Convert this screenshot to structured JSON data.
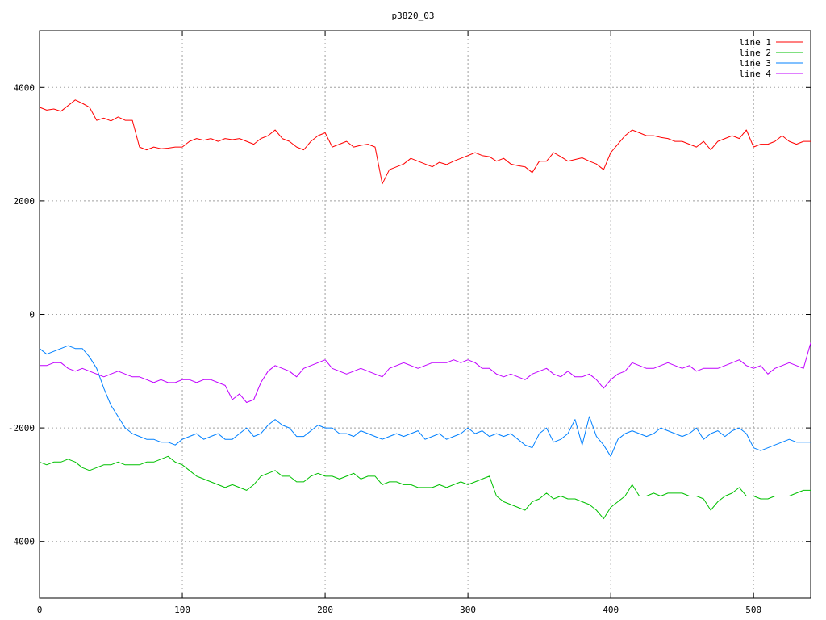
{
  "chart_data": {
    "type": "line",
    "title": "p3820_03",
    "xlabel": "",
    "ylabel": "",
    "xlim": [
      0,
      540
    ],
    "ylim": [
      -5000,
      5000
    ],
    "xticks": [
      0,
      100,
      200,
      300,
      400,
      500
    ],
    "yticks": [
      -4000,
      -2000,
      0,
      2000,
      4000
    ],
    "xtick_labels": [
      "0",
      "100",
      "200",
      "300",
      "400",
      "500"
    ],
    "ytick_labels": [
      "-4000",
      "-2000",
      "0",
      "2000",
      "4000"
    ],
    "grid": true,
    "legend_position": "top-right",
    "x": [
      0,
      5,
      10,
      15,
      20,
      25,
      30,
      35,
      40,
      45,
      50,
      55,
      60,
      65,
      70,
      75,
      80,
      85,
      90,
      95,
      100,
      105,
      110,
      115,
      120,
      125,
      130,
      135,
      140,
      145,
      150,
      155,
      160,
      165,
      170,
      175,
      180,
      185,
      190,
      195,
      200,
      205,
      210,
      215,
      220,
      225,
      230,
      235,
      240,
      245,
      250,
      255,
      260,
      265,
      270,
      275,
      280,
      285,
      290,
      295,
      300,
      305,
      310,
      315,
      320,
      325,
      330,
      335,
      340,
      345,
      350,
      355,
      360,
      365,
      370,
      375,
      380,
      385,
      390,
      395,
      400,
      405,
      410,
      415,
      420,
      425,
      430,
      435,
      440,
      445,
      450,
      455,
      460,
      465,
      470,
      475,
      480,
      485,
      490,
      495,
      500,
      505,
      510,
      515,
      520,
      525,
      530,
      535,
      540
    ],
    "series": [
      {
        "name": "line 1",
        "color": "#ff0000",
        "values": [
          3650,
          3600,
          3620,
          3580,
          3680,
          3780,
          3720,
          3650,
          3420,
          3460,
          3410,
          3480,
          3420,
          3420,
          2950,
          2900,
          2950,
          2920,
          2930,
          2950,
          2950,
          3050,
          3100,
          3070,
          3100,
          3050,
          3100,
          3080,
          3100,
          3050,
          3000,
          3100,
          3150,
          3250,
          3100,
          3050,
          2950,
          2900,
          3050,
          3150,
          3200,
          2950,
          3000,
          3050,
          2950,
          2980,
          3000,
          2950,
          2300,
          2550,
          2600,
          2650,
          2750,
          2700,
          2650,
          2600,
          2680,
          2640,
          2700,
          2750,
          2800,
          2850,
          2800,
          2780,
          2700,
          2750,
          2650,
          2620,
          2600,
          2500,
          2700,
          2700,
          2850,
          2780,
          2700,
          2730,
          2760,
          2700,
          2650,
          2550,
          2850,
          3000,
          3150,
          3250,
          3200,
          3150,
          3150,
          3120,
          3100,
          3050,
          3050,
          3000,
          2950,
          3050,
          2900,
          3050,
          3100,
          3150,
          3100,
          3250,
          2950,
          3000,
          3000,
          3050,
          3150,
          3050,
          3000,
          3050,
          3050
        ]
      },
      {
        "name": "line 2",
        "color": "#00c000",
        "values": [
          -2600,
          -2650,
          -2600,
          -2600,
          -2550,
          -2600,
          -2700,
          -2750,
          -2700,
          -2650,
          -2650,
          -2600,
          -2650,
          -2650,
          -2650,
          -2600,
          -2600,
          -2550,
          -2500,
          -2600,
          -2650,
          -2750,
          -2850,
          -2900,
          -2950,
          -3000,
          -3050,
          -3000,
          -3050,
          -3100,
          -3000,
          -2850,
          -2800,
          -2750,
          -2850,
          -2850,
          -2950,
          -2950,
          -2850,
          -2800,
          -2850,
          -2850,
          -2900,
          -2850,
          -2800,
          -2900,
          -2850,
          -2850,
          -3000,
          -2950,
          -2950,
          -3000,
          -3000,
          -3050,
          -3050,
          -3050,
          -3000,
          -3050,
          -3000,
          -2950,
          -3000,
          -2950,
          -2900,
          -2850,
          -3200,
          -3300,
          -3350,
          -3400,
          -3450,
          -3300,
          -3250,
          -3150,
          -3250,
          -3200,
          -3250,
          -3250,
          -3300,
          -3350,
          -3450,
          -3600,
          -3400,
          -3300,
          -3200,
          -3000,
          -3200,
          -3200,
          -3150,
          -3200,
          -3150,
          -3150,
          -3150,
          -3200,
          -3200,
          -3250,
          -3450,
          -3300,
          -3200,
          -3150,
          -3050,
          -3200,
          -3200,
          -3250,
          -3250,
          -3200,
          -3200,
          -3200,
          -3150,
          -3100,
          -3100
        ]
      },
      {
        "name": "line 3",
        "color": "#0080ff",
        "values": [
          -600,
          -700,
          -650,
          -600,
          -550,
          -600,
          -600,
          -750,
          -950,
          -1300,
          -1600,
          -1800,
          -2000,
          -2100,
          -2150,
          -2200,
          -2200,
          -2250,
          -2250,
          -2300,
          -2200,
          -2150,
          -2100,
          -2200,
          -2150,
          -2100,
          -2200,
          -2200,
          -2100,
          -2000,
          -2150,
          -2100,
          -1950,
          -1850,
          -1950,
          -2000,
          -2150,
          -2150,
          -2050,
          -1950,
          -2000,
          -2000,
          -2100,
          -2100,
          -2150,
          -2050,
          -2100,
          -2150,
          -2200,
          -2150,
          -2100,
          -2150,
          -2100,
          -2050,
          -2200,
          -2150,
          -2100,
          -2200,
          -2150,
          -2100,
          -2000,
          -2100,
          -2050,
          -2150,
          -2100,
          -2150,
          -2100,
          -2200,
          -2300,
          -2350,
          -2100,
          -2000,
          -2250,
          -2200,
          -2100,
          -1850,
          -2300,
          -1800,
          -2150,
          -2300,
          -2500,
          -2200,
          -2100,
          -2050,
          -2100,
          -2150,
          -2100,
          -2000,
          -2050,
          -2100,
          -2150,
          -2100,
          -2000,
          -2200,
          -2100,
          -2050,
          -2150,
          -2050,
          -2000,
          -2100,
          -2350,
          -2400,
          -2350,
          -2300,
          -2250,
          -2200,
          -2250,
          -2250,
          -2250
        ]
      },
      {
        "name": "line 4",
        "color": "#c000ff",
        "values": [
          -900,
          -900,
          -850,
          -850,
          -950,
          -1000,
          -950,
          -1000,
          -1050,
          -1100,
          -1050,
          -1000,
          -1050,
          -1100,
          -1100,
          -1150,
          -1200,
          -1150,
          -1200,
          -1200,
          -1150,
          -1150,
          -1200,
          -1150,
          -1150,
          -1200,
          -1250,
          -1500,
          -1400,
          -1550,
          -1500,
          -1200,
          -1000,
          -900,
          -950,
          -1000,
          -1100,
          -950,
          -900,
          -850,
          -800,
          -950,
          -1000,
          -1050,
          -1000,
          -950,
          -1000,
          -1050,
          -1100,
          -950,
          -900,
          -850,
          -900,
          -950,
          -900,
          -850,
          -850,
          -850,
          -800,
          -850,
          -800,
          -850,
          -950,
          -950,
          -1050,
          -1100,
          -1050,
          -1100,
          -1150,
          -1050,
          -1000,
          -950,
          -1050,
          -1100,
          -1000,
          -1100,
          -1100,
          -1050,
          -1150,
          -1300,
          -1150,
          -1050,
          -1000,
          -850,
          -900,
          -950,
          -950,
          -900,
          -850,
          -900,
          -950,
          -900,
          -1000,
          -950,
          -950,
          -950,
          -900,
          -850,
          -800,
          -900,
          -950,
          -900,
          -1050,
          -950,
          -900,
          -850,
          -900,
          -950,
          -500
        ]
      }
    ]
  }
}
